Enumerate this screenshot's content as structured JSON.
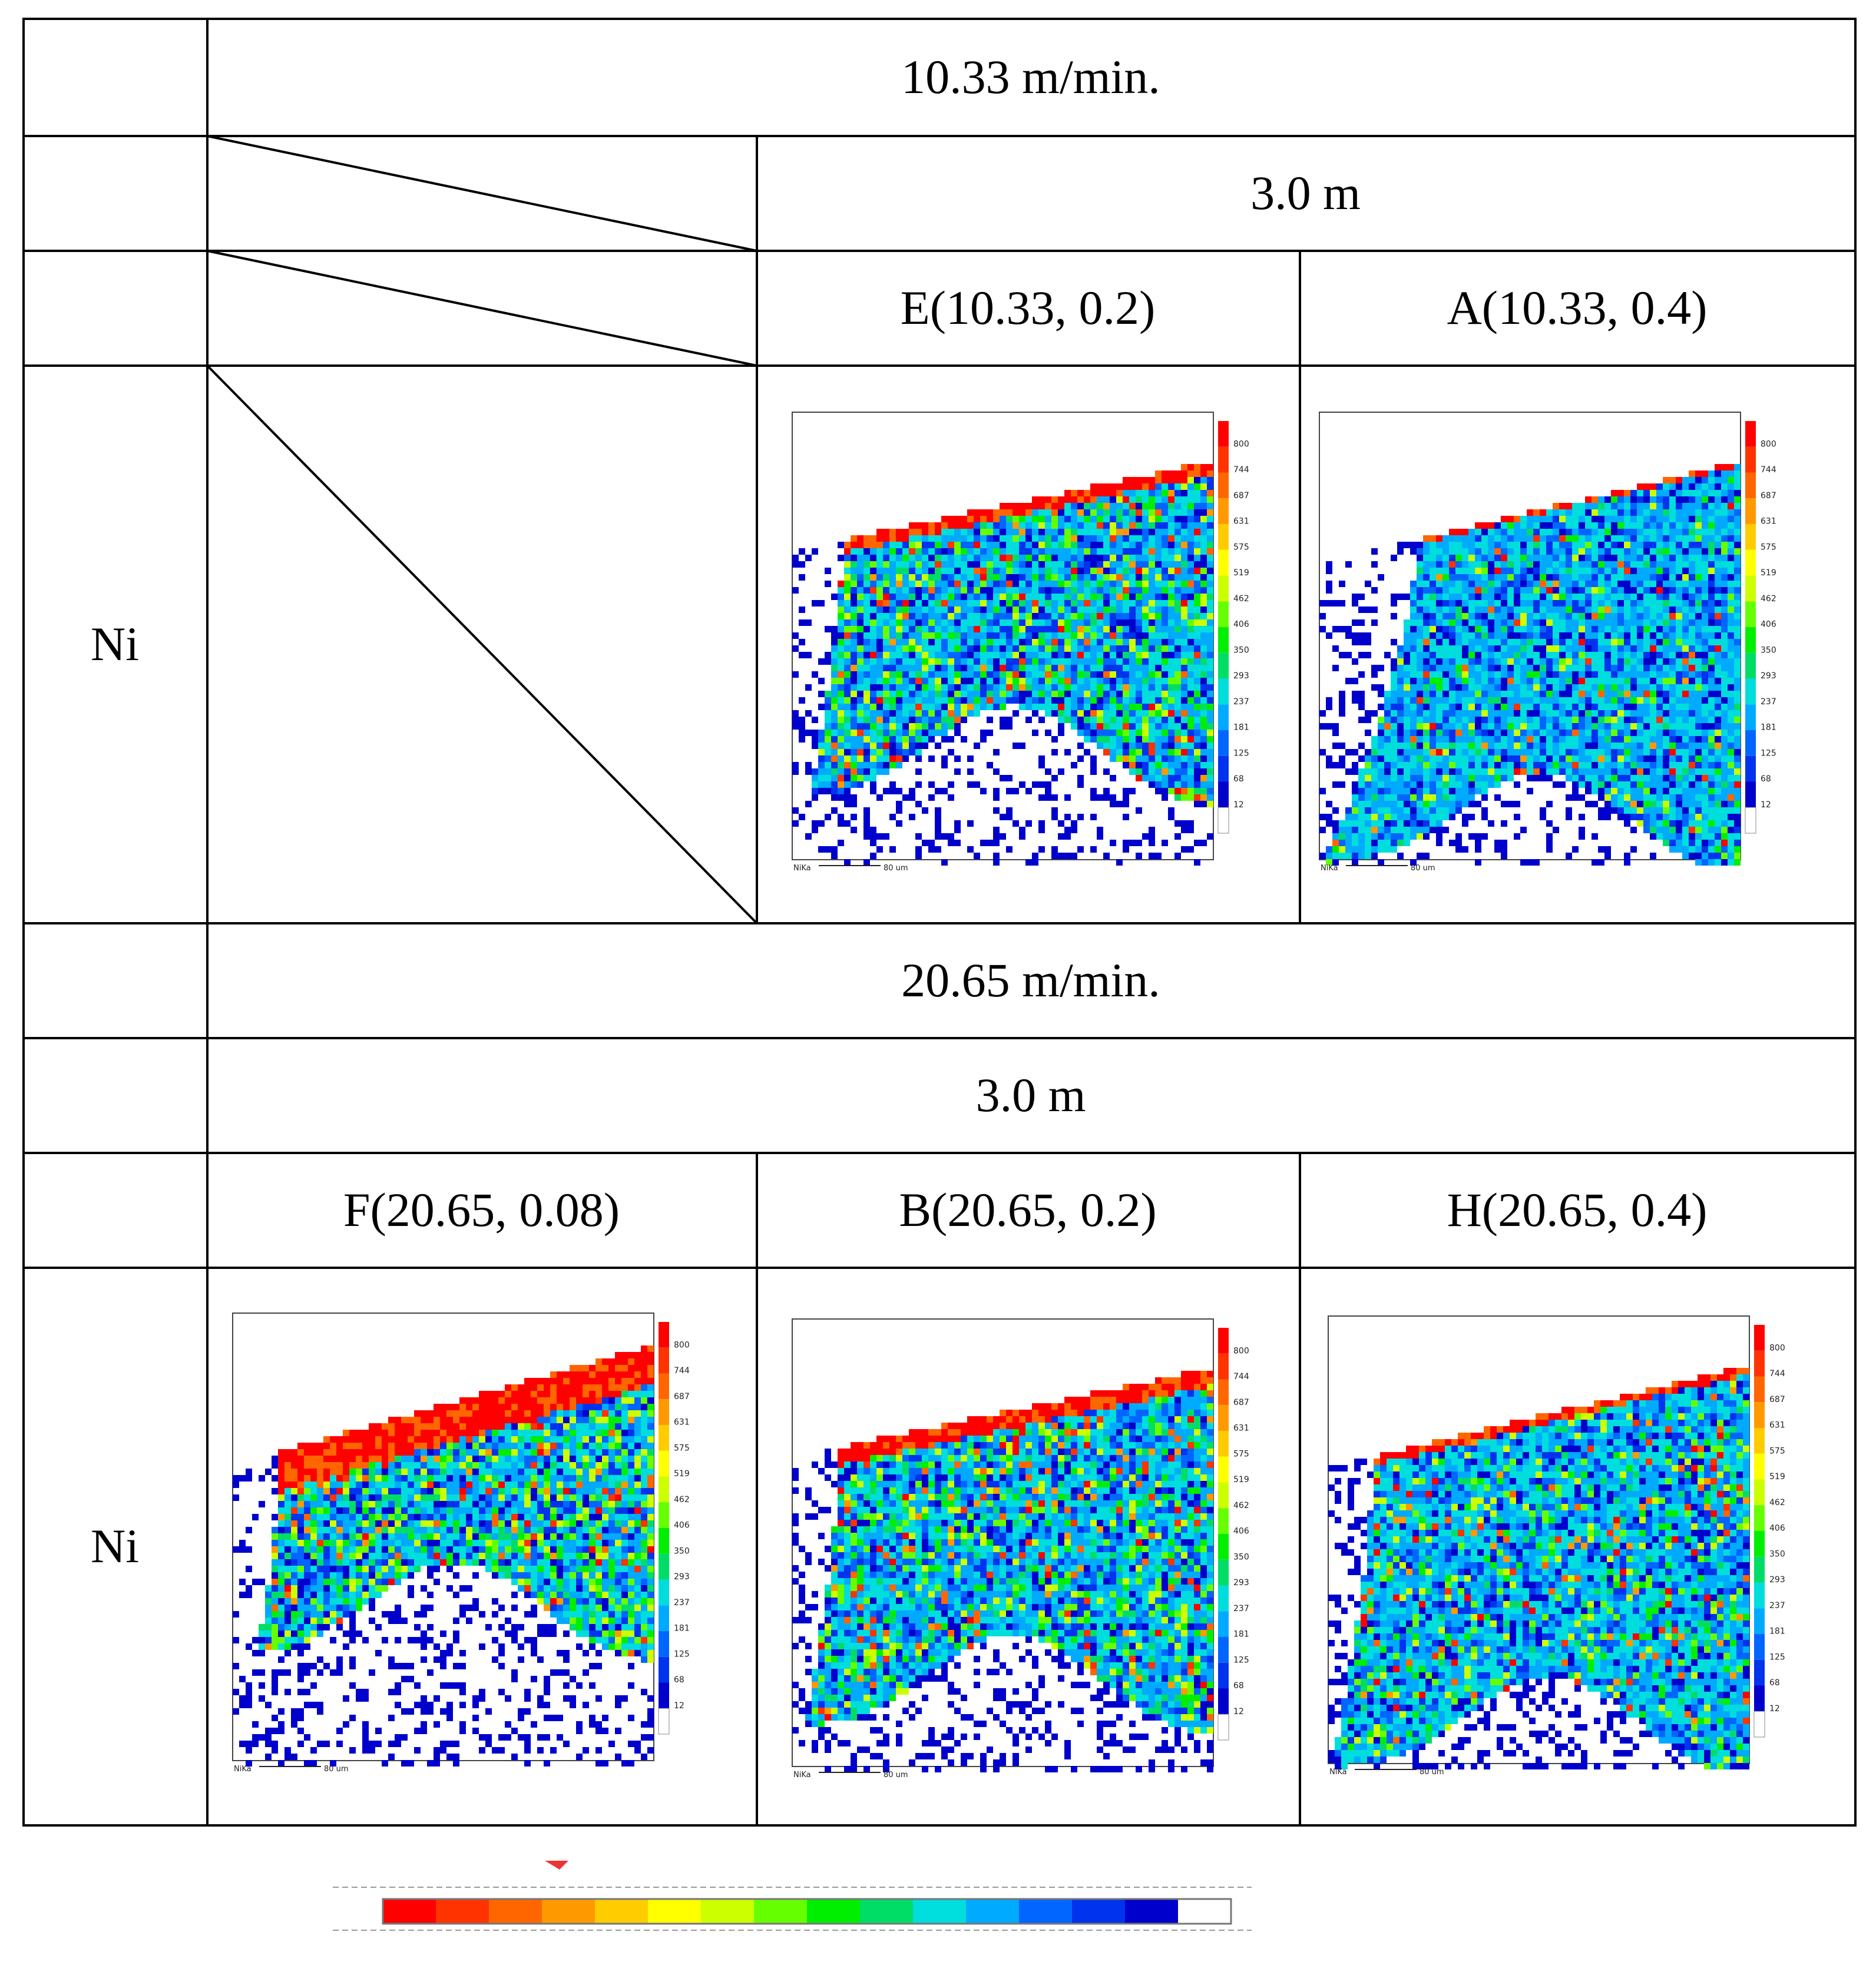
{
  "table": {
    "speed_1": "10.33 m/min.",
    "length_1": "3.0 m",
    "speed_2": "20.65 m/min.",
    "length_2": "3.0 m",
    "row_label_ni_1": "Ni",
    "row_label_ni_2": "Ni",
    "samples_row1": [
      {
        "label": "E(10.33, 0.2)"
      },
      {
        "label": "A(10.33, 0.4)"
      }
    ],
    "samples_row2": [
      {
        "label": "F(20.65, 0.08)"
      },
      {
        "label": "B(20.65, 0.2)"
      },
      {
        "label": "H(20.65, 0.4)"
      }
    ]
  },
  "maps": {
    "element_label": "NiKa",
    "scale_label": "80 um",
    "legend_ticks": [
      "800",
      "744",
      "687",
      "631",
      "575",
      "519",
      "462",
      "406",
      "350",
      "293",
      "237",
      "181",
      "125",
      "68",
      "12"
    ]
  },
  "colors": {
    "ramp": [
      "#ff0000",
      "#ff3300",
      "#ff6600",
      "#ff9900",
      "#ffcc00",
      "#ffff00",
      "#ccff00",
      "#66ff00",
      "#00ee00",
      "#00dd66",
      "#00dddd",
      "#00aaff",
      "#0066ff",
      "#0033ee",
      "#0000cc",
      "#ffffff"
    ]
  }
}
